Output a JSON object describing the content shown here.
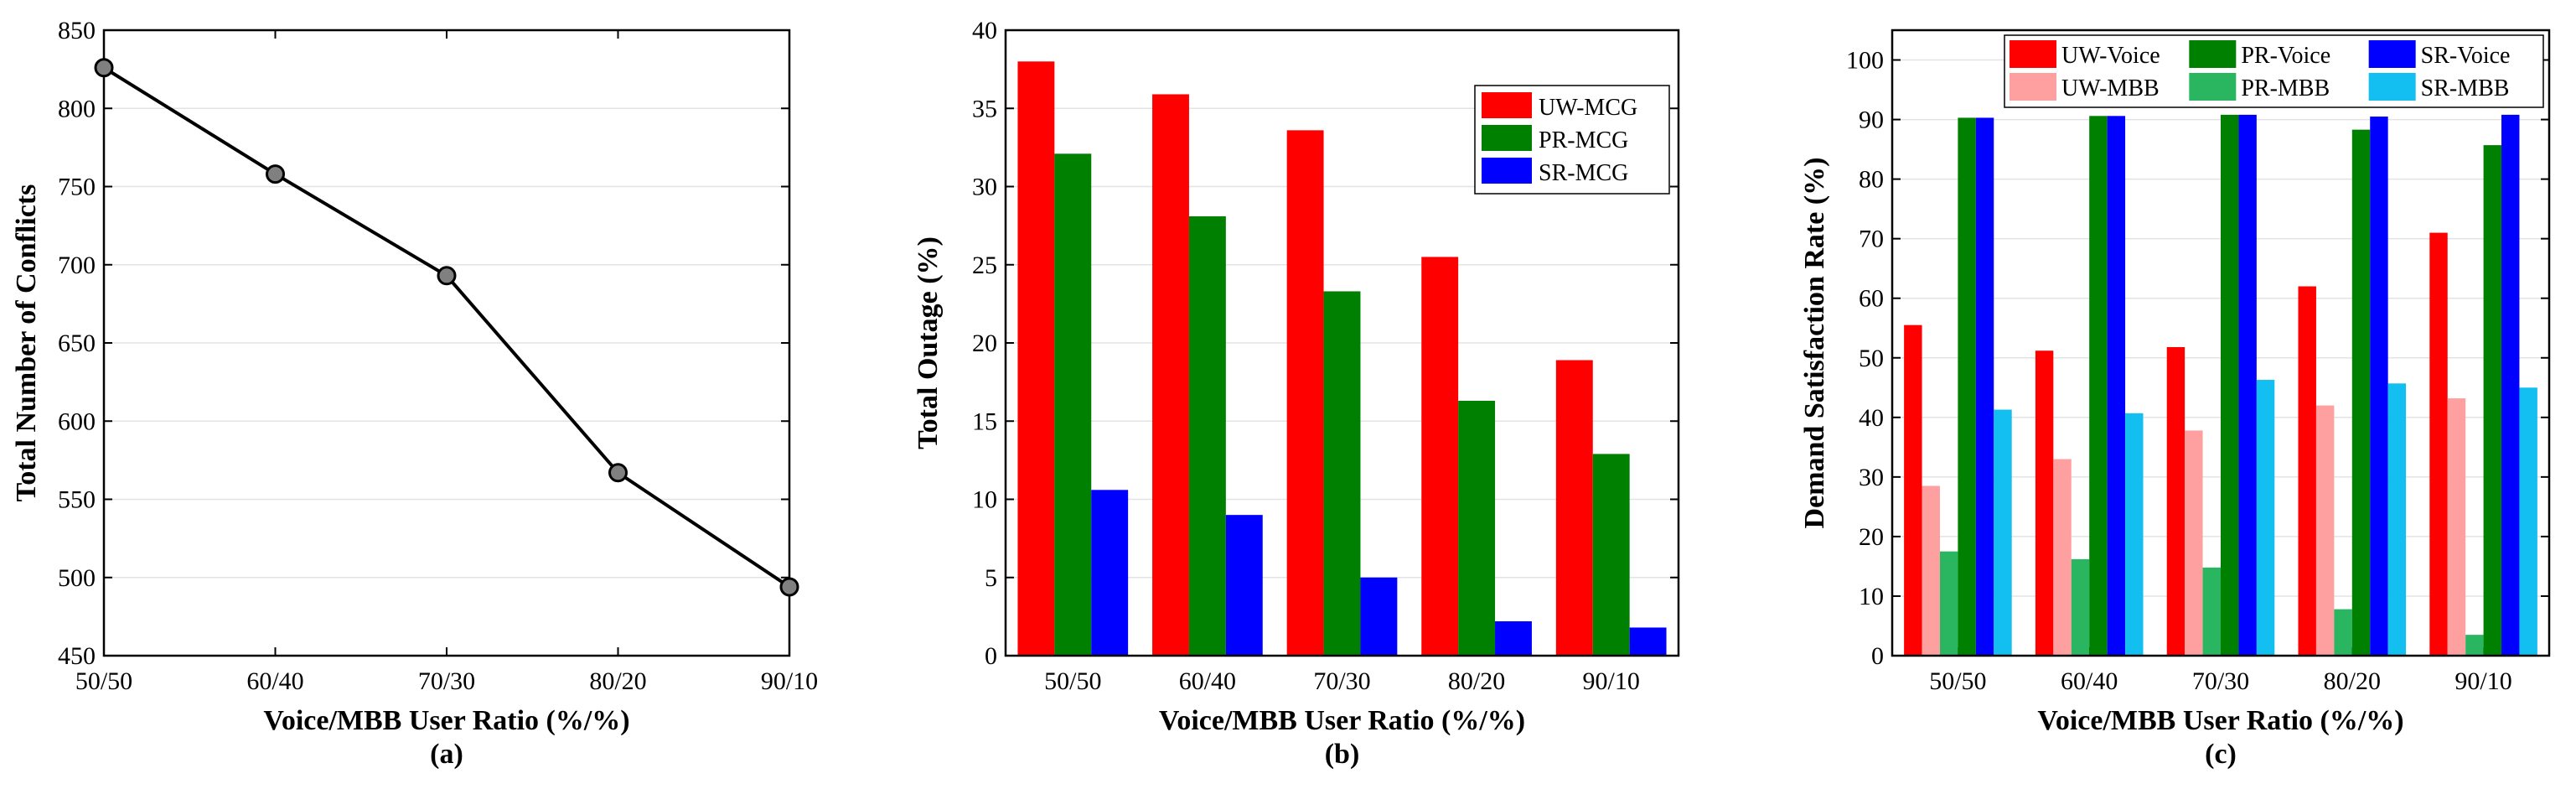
{
  "chart_data": [
    {
      "type": "line",
      "panel_label": "(a)",
      "categories": [
        "50/50",
        "60/40",
        "70/30",
        "80/20",
        "90/10"
      ],
      "values": [
        826,
        758,
        693,
        567,
        494
      ],
      "xlabel": "Voice/MBB User Ratio (%/%)",
      "ylabel": "Total Number of Conflicts",
      "ylim": [
        450,
        850
      ],
      "yticks": [
        450,
        500,
        550,
        600,
        650,
        700,
        750,
        800,
        850
      ],
      "grid": "horizontal",
      "series_color": "#000000",
      "marker_color": "#808080"
    },
    {
      "type": "bar",
      "panel_label": "(b)",
      "categories": [
        "50/50",
        "60/40",
        "70/30",
        "80/20",
        "90/10"
      ],
      "series": [
        {
          "name": "UW-MCG",
          "color": "#ff0000",
          "values": [
            38.0,
            35.9,
            33.6,
            25.5,
            18.9
          ]
        },
        {
          "name": "PR-MCG",
          "color": "#008000",
          "values": [
            32.1,
            28.1,
            23.3,
            16.3,
            12.9
          ]
        },
        {
          "name": "SR-MCG",
          "color": "#0000ff",
          "values": [
            10.6,
            9.0,
            5.0,
            2.2,
            1.8
          ]
        }
      ],
      "xlabel": "Voice/MBB User Ratio (%/%)",
      "ylabel": "Total Outage (%)",
      "ylim": [
        0,
        40
      ],
      "yticks": [
        0,
        5,
        10,
        15,
        20,
        25,
        30,
        35,
        40
      ],
      "grid": "horizontal",
      "legend": "top-right"
    },
    {
      "type": "bar",
      "panel_label": "(c)",
      "categories": [
        "50/50",
        "60/40",
        "70/30",
        "80/20",
        "90/10"
      ],
      "series": [
        {
          "name": "UW-Voice",
          "color": "#ff0000",
          "values": [
            55.5,
            51.2,
            51.8,
            62.0,
            71.0
          ]
        },
        {
          "name": "UW-MBB",
          "color": "#ffa0a0",
          "values": [
            28.5,
            33.0,
            37.8,
            42.0,
            43.2
          ]
        },
        {
          "name": "PR-MBB",
          "color": "#2ab561",
          "values": [
            17.5,
            16.2,
            14.8,
            7.8,
            3.5
          ]
        },
        {
          "name": "PR-Voice",
          "color": "#008000",
          "values": [
            90.3,
            90.6,
            90.8,
            88.3,
            85.7
          ]
        },
        {
          "name": "SR-Voice",
          "color": "#0000ff",
          "values": [
            90.3,
            90.6,
            90.8,
            90.5,
            90.8
          ]
        },
        {
          "name": "SR-MBB",
          "color": "#12bff0",
          "values": [
            41.3,
            40.7,
            46.3,
            45.7,
            45.0
          ]
        }
      ],
      "legend_order": [
        "UW-Voice",
        "PR-Voice",
        "SR-Voice",
        "UW-MBB",
        "PR-MBB",
        "SR-MBB"
      ],
      "xlabel": "Voice/MBB User Ratio (%/%)",
      "ylabel": "Demand Satisfaction Rate (%)",
      "ylim": [
        0,
        105
      ],
      "yticks": [
        0,
        10,
        20,
        30,
        40,
        50,
        60,
        70,
        80,
        90,
        100
      ],
      "grid": "horizontal",
      "legend": "top"
    }
  ]
}
